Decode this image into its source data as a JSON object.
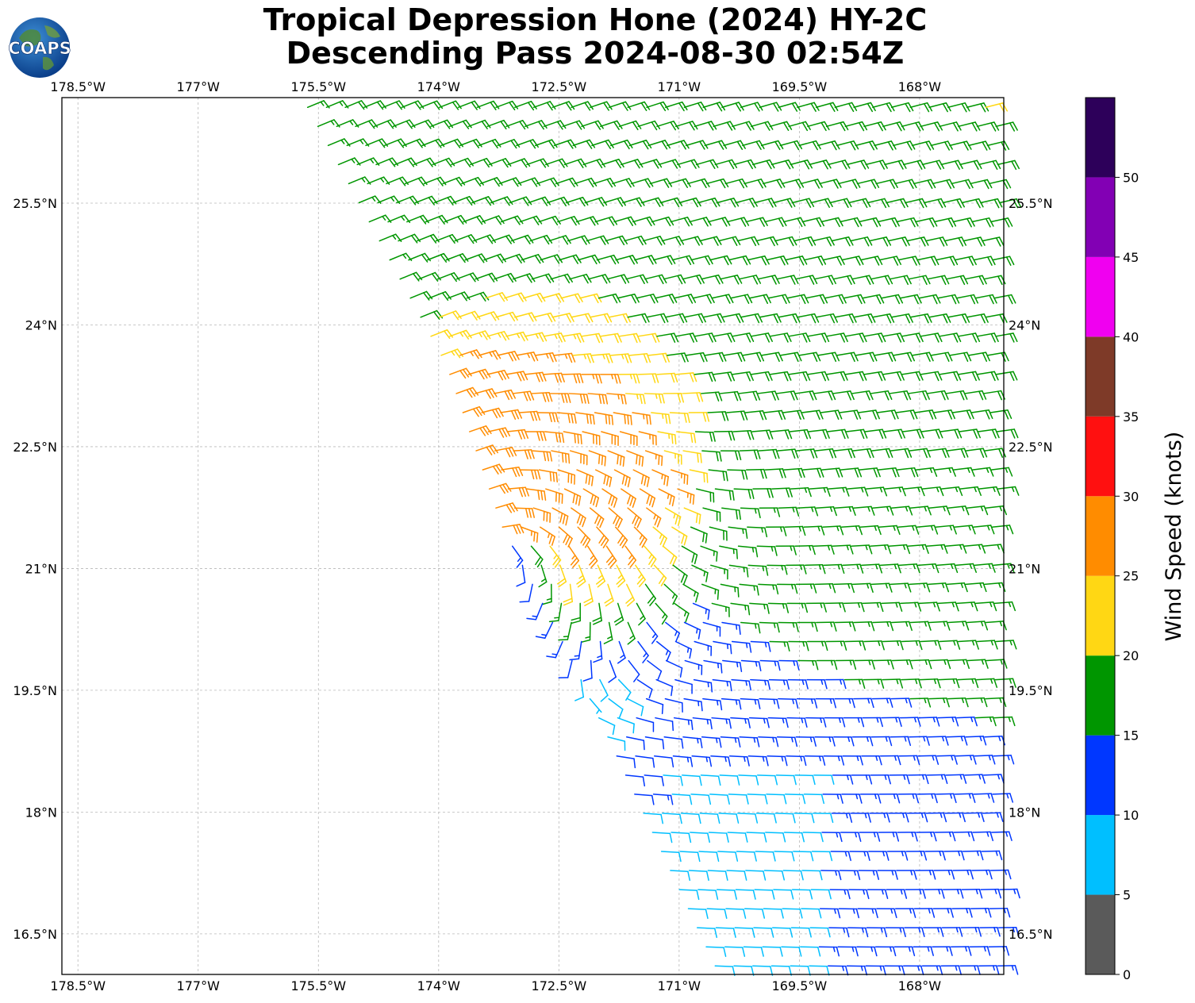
{
  "logo": {
    "text": "COAPS"
  },
  "chart_data": {
    "type": "wind-barb-map",
    "title": "Tropical Depression Hone (2024) HY-2C",
    "subtitle": "Descending Pass 2024-08-30 02:54Z",
    "xlim": [
      -178.7,
      -166.95
    ],
    "ylim": [
      16.0,
      26.8
    ],
    "x_ticks": [
      {
        "value": -178.5,
        "label": "178.5°W"
      },
      {
        "value": -177.0,
        "label": "177°W"
      },
      {
        "value": -175.5,
        "label": "175.5°W"
      },
      {
        "value": -174.0,
        "label": "174°W"
      },
      {
        "value": -172.5,
        "label": "172.5°W"
      },
      {
        "value": -171.0,
        "label": "171°W"
      },
      {
        "value": -169.5,
        "label": "169.5°W"
      },
      {
        "value": -168.0,
        "label": "168°W"
      }
    ],
    "y_ticks": [
      {
        "value": 16.5,
        "label": "16.5°N"
      },
      {
        "value": 18.0,
        "label": "18°N"
      },
      {
        "value": 19.5,
        "label": "19.5°N"
      },
      {
        "value": 21.0,
        "label": "21°N"
      },
      {
        "value": 22.5,
        "label": "22.5°N"
      },
      {
        "value": 24.0,
        "label": "24°N"
      },
      {
        "value": 25.5,
        "label": "25.5°N"
      }
    ],
    "grid": true,
    "storm_center": {
      "lon": -173.2,
      "lat": 21.35
    },
    "swath_west_edge": [
      [
        -175.8,
        26.8
      ],
      [
        -174.0,
        23.5
      ],
      [
        -173.3,
        21.5
      ],
      [
        -172.5,
        20.0
      ],
      [
        -170.6,
        16.0
      ]
    ],
    "colorbar": {
      "label": "Wind Speed (knots)",
      "bounds": [
        0,
        5,
        10,
        15,
        20,
        25,
        30,
        35,
        40,
        45,
        50,
        55
      ],
      "tick_labels": [
        "0",
        "5",
        "10",
        "15",
        "20",
        "25",
        "30",
        "35",
        "40",
        "45",
        "50"
      ],
      "colors": [
        "#5a5a5a",
        "#00bfff",
        "#0037ff",
        "#009600",
        "#ffd714",
        "#ff8c00",
        "#ff1010",
        "#7e3a28",
        "#f000f0",
        "#8200b4",
        "#2d005a"
      ]
    }
  }
}
